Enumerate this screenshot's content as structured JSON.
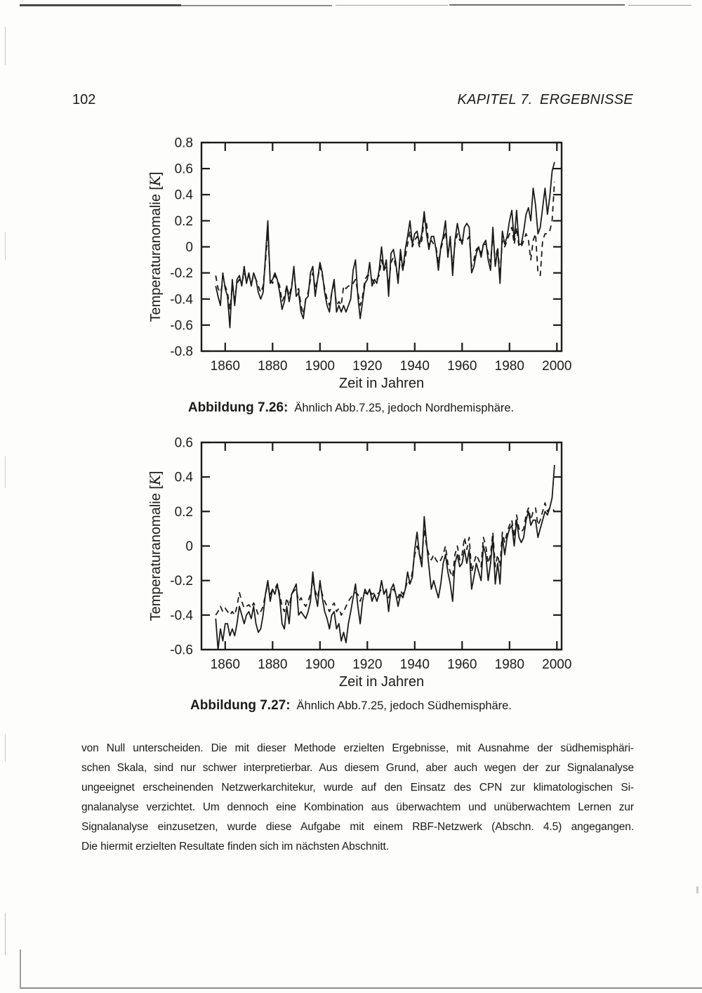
{
  "page": {
    "number": "102",
    "chapter_header": "KAPITEL 7. ERGEBNISSE"
  },
  "figures": [
    {
      "id": "7.26",
      "caption_label": "Abbildung 7.26:",
      "caption_text": "Ähnlich Abb.7.25, jedoch Nordhemisphäre.",
      "xlabel": "Zeit in Jahren",
      "ylabel": "Temperaturanomalie",
      "ylabel_unit": "[K]"
    },
    {
      "id": "7.27",
      "caption_label": "Abbildung 7.27:",
      "caption_text": "Ähnlich Abb.7.25, jedoch Südhemisphäre.",
      "xlabel": "Zeit in Jahren",
      "ylabel": "Temperaturanomalie",
      "ylabel_unit": "[K]"
    }
  ],
  "paragraph_lines": [
    "von Null unterscheiden. Die mit dieser Methode erzielten Ergebnisse, mit Ausnahme der südhemisphäri-",
    "schen Skala, sind nur schwer interpretierbar. Aus diesem Grund, aber auch wegen der zur Signalanalyse",
    "ungeeignet erscheinenden Netzwerkarchitekur, wurde auf den Einsatz des CPN zur klimatologischen Si-",
    "gnalanalyse verzichtet. Um dennoch eine Kombination aus überwachtem und unüberwachtem Lernen zur",
    "Signalanalyse einzusetzen, wurde diese Aufgabe mit einem RBF-Netzwerk (Abschn. 4.5) angegangen.",
    "Die hiermit erzielten Resultate finden sich im nächsten Abschnitt."
  ],
  "chart_data": [
    {
      "type": "line",
      "title": "",
      "xlabel": "Zeit in Jahren",
      "ylabel": "Temperaturanomalie [K]",
      "xlim": [
        1850,
        2002
      ],
      "ylim": [
        -0.8,
        0.8
      ],
      "xticks": [
        1860,
        1880,
        1900,
        1920,
        1940,
        1960,
        1980,
        2000
      ],
      "ytick_step": 0.2,
      "grid": false,
      "legend": "none",
      "x_start": 1856,
      "x_step": 1,
      "series": [
        {
          "name": "solid",
          "style": "solid",
          "values": [
            -0.3,
            -0.38,
            -0.45,
            -0.2,
            -0.32,
            -0.38,
            -0.62,
            -0.25,
            -0.45,
            -0.25,
            -0.22,
            -0.3,
            -0.15,
            -0.28,
            -0.2,
            -0.3,
            -0.2,
            -0.25,
            -0.35,
            -0.4,
            -0.35,
            -0.08,
            0.2,
            -0.28,
            -0.25,
            -0.2,
            -0.25,
            -0.35,
            -0.48,
            -0.42,
            -0.3,
            -0.42,
            -0.32,
            -0.15,
            -0.38,
            -0.35,
            -0.5,
            -0.55,
            -0.4,
            -0.38,
            -0.2,
            -0.15,
            -0.38,
            -0.25,
            -0.12,
            -0.2,
            -0.35,
            -0.45,
            -0.5,
            -0.35,
            -0.25,
            -0.5,
            -0.45,
            -0.5,
            -0.45,
            -0.5,
            -0.45,
            -0.4,
            -0.18,
            -0.1,
            -0.38,
            -0.55,
            -0.42,
            -0.28,
            -0.25,
            -0.12,
            -0.3,
            -0.25,
            -0.28,
            -0.18,
            0.0,
            -0.18,
            -0.1,
            -0.38,
            -0.05,
            -0.02,
            -0.12,
            -0.28,
            -0.02,
            -0.18,
            -0.02,
            0.08,
            0.2,
            0.02,
            0.1,
            0.12,
            0.02,
            0.1,
            0.27,
            0.1,
            -0.02,
            0.08,
            0.08,
            -0.02,
            -0.18,
            0.0,
            0.08,
            0.2,
            -0.08,
            0.08,
            -0.22,
            0.05,
            0.18,
            0.08,
            0.02,
            0.15,
            0.18,
            0.15,
            -0.2,
            -0.15,
            -0.05,
            0.0,
            -0.08,
            0.02,
            0.05,
            -0.1,
            -0.18,
            0.15,
            -0.15,
            -0.02,
            -0.28,
            0.12,
            0.02,
            0.08,
            0.2,
            0.28,
            0.05,
            0.28,
            0.02,
            0.02,
            0.12,
            0.25,
            0.3,
            0.2,
            0.45,
            0.32,
            0.1,
            0.15,
            0.3,
            0.45,
            0.25,
            0.38,
            0.58,
            0.65
          ]
        },
        {
          "name": "dashed",
          "style": "dashed",
          "values": [
            -0.22,
            -0.32,
            -0.35,
            -0.28,
            -0.3,
            -0.35,
            -0.48,
            -0.3,
            -0.4,
            -0.28,
            -0.25,
            -0.28,
            -0.2,
            -0.25,
            -0.22,
            -0.28,
            -0.22,
            -0.25,
            -0.3,
            -0.35,
            -0.3,
            -0.12,
            0.12,
            -0.25,
            -0.28,
            -0.22,
            -0.25,
            -0.3,
            -0.42,
            -0.38,
            -0.3,
            -0.38,
            -0.3,
            -0.18,
            -0.35,
            -0.32,
            -0.45,
            -0.52,
            -0.4,
            -0.35,
            -0.25,
            -0.2,
            -0.32,
            -0.25,
            -0.15,
            -0.22,
            -0.32,
            -0.4,
            -0.45,
            -0.35,
            -0.28,
            -0.45,
            -0.42,
            -0.45,
            -0.3,
            -0.32,
            -0.3,
            -0.3,
            -0.28,
            -0.25,
            -0.35,
            -0.45,
            -0.38,
            -0.25,
            -0.22,
            -0.22,
            -0.25,
            -0.28,
            -0.25,
            -0.22,
            -0.1,
            -0.18,
            -0.15,
            -0.3,
            -0.12,
            -0.08,
            -0.15,
            -0.25,
            -0.08,
            -0.18,
            -0.08,
            0.02,
            0.12,
            0.0,
            0.05,
            0.08,
            0.0,
            0.05,
            0.22,
            0.18,
            0.0,
            0.05,
            0.02,
            0.0,
            -0.12,
            -0.02,
            0.05,
            0.12,
            -0.05,
            0.05,
            -0.15,
            0.02,
            0.1,
            0.05,
            0.05,
            0.05,
            0.05,
            0.08,
            -0.15,
            -0.1,
            -0.02,
            0.0,
            -0.05,
            0.02,
            0.02,
            -0.05,
            -0.12,
            0.1,
            -0.12,
            0.0,
            -0.22,
            0.05,
            0.0,
            0.05,
            0.1,
            0.15,
            0.02,
            0.15,
            0.0,
            0.0,
            0.05,
            0.1,
            0.05,
            -0.1,
            0.05,
            0.1,
            -0.2,
            -0.22,
            0.05,
            0.1,
            0.1,
            0.12,
            0.2,
            0.5
          ]
        }
      ]
    },
    {
      "type": "line",
      "title": "",
      "xlabel": "Zeit in Jahren",
      "ylabel": "Temperaturanomalie [K]",
      "xlim": [
        1850,
        2002
      ],
      "ylim": [
        -0.6,
        0.6
      ],
      "xticks": [
        1860,
        1880,
        1900,
        1920,
        1940,
        1960,
        1980,
        2000
      ],
      "ytick_step": 0.2,
      "grid": false,
      "legend": "none",
      "x_start": 1856,
      "x_step": 1,
      "series": [
        {
          "name": "solid",
          "style": "solid",
          "values": [
            -0.42,
            -0.6,
            -0.48,
            -0.55,
            -0.45,
            -0.45,
            -0.52,
            -0.48,
            -0.52,
            -0.45,
            -0.35,
            -0.4,
            -0.45,
            -0.4,
            -0.38,
            -0.42,
            -0.35,
            -0.45,
            -0.5,
            -0.48,
            -0.4,
            -0.28,
            -0.2,
            -0.32,
            -0.25,
            -0.28,
            -0.22,
            -0.3,
            -0.45,
            -0.48,
            -0.35,
            -0.45,
            -0.28,
            -0.25,
            -0.22,
            -0.4,
            -0.38,
            -0.4,
            -0.42,
            -0.38,
            -0.32,
            -0.15,
            -0.28,
            -0.35,
            -0.2,
            -0.3,
            -0.38,
            -0.42,
            -0.48,
            -0.4,
            -0.38,
            -0.48,
            -0.45,
            -0.55,
            -0.5,
            -0.56,
            -0.45,
            -0.38,
            -0.3,
            -0.22,
            -0.35,
            -0.45,
            -0.32,
            -0.25,
            -0.28,
            -0.25,
            -0.32,
            -0.28,
            -0.32,
            -0.28,
            -0.2,
            -0.28,
            -0.25,
            -0.38,
            -0.25,
            -0.22,
            -0.28,
            -0.35,
            -0.28,
            -0.3,
            -0.25,
            -0.15,
            -0.22,
            -0.18,
            -0.02,
            0.08,
            -0.05,
            -0.12,
            0.17,
            0.02,
            -0.12,
            -0.25,
            -0.2,
            -0.25,
            -0.3,
            -0.22,
            -0.1,
            -0.05,
            -0.15,
            -0.22,
            -0.32,
            -0.1,
            -0.05,
            -0.12,
            -0.1,
            -0.02,
            -0.1,
            -0.02,
            -0.25,
            -0.18,
            -0.1,
            -0.15,
            -0.2,
            0.0,
            -0.05,
            -0.2,
            -0.1,
            0.05,
            -0.22,
            -0.1,
            -0.22,
            0.05,
            -0.05,
            0.05,
            0.1,
            0.12,
            0.0,
            0.15,
            0.05,
            0.02,
            0.05,
            0.15,
            0.2,
            0.12,
            0.15,
            0.15,
            0.05,
            0.1,
            0.15,
            0.2,
            0.18,
            0.22,
            0.28,
            0.47
          ]
        },
        {
          "name": "dashed",
          "style": "dashed",
          "values": [
            -0.4,
            -0.38,
            -0.35,
            -0.38,
            -0.36,
            -0.38,
            -0.4,
            -0.38,
            -0.4,
            -0.35,
            -0.27,
            -0.32,
            -0.36,
            -0.35,
            -0.34,
            -0.36,
            -0.33,
            -0.36,
            -0.4,
            -0.38,
            -0.35,
            -0.28,
            -0.22,
            -0.28,
            -0.25,
            -0.25,
            -0.22,
            -0.28,
            -0.35,
            -0.38,
            -0.3,
            -0.35,
            -0.28,
            -0.26,
            -0.25,
            -0.32,
            -0.3,
            -0.33,
            -0.35,
            -0.32,
            -0.28,
            -0.2,
            -0.26,
            -0.3,
            -0.22,
            -0.28,
            -0.32,
            -0.35,
            -0.38,
            -0.35,
            -0.33,
            -0.38,
            -0.36,
            -0.4,
            -0.38,
            -0.35,
            -0.32,
            -0.3,
            -0.28,
            -0.27,
            -0.28,
            -0.32,
            -0.28,
            -0.27,
            -0.28,
            -0.26,
            -0.28,
            -0.27,
            -0.28,
            -0.27,
            -0.25,
            -0.27,
            -0.26,
            -0.3,
            -0.26,
            -0.25,
            -0.27,
            -0.3,
            -0.26,
            -0.28,
            -0.25,
            -0.2,
            -0.22,
            -0.15,
            -0.05,
            0.0,
            -0.05,
            -0.08,
            0.1,
            0.0,
            -0.05,
            -0.08,
            -0.05,
            -0.08,
            -0.1,
            -0.08,
            -0.05,
            0.0,
            -0.1,
            -0.15,
            -0.18,
            -0.05,
            0.0,
            -0.08,
            -0.05,
            0.05,
            -0.02,
            0.05,
            -0.15,
            -0.1,
            -0.05,
            -0.08,
            -0.12,
            0.05,
            0.0,
            -0.1,
            -0.05,
            0.08,
            -0.12,
            -0.05,
            -0.12,
            0.08,
            0.02,
            0.08,
            0.12,
            0.15,
            0.05,
            0.18,
            0.1,
            0.08,
            0.1,
            0.18,
            0.22,
            0.15,
            0.2,
            0.22,
            0.12,
            0.15,
            0.2,
            0.25,
            0.2,
            0.22,
            0.22,
            0.2
          ]
        }
      ]
    }
  ]
}
